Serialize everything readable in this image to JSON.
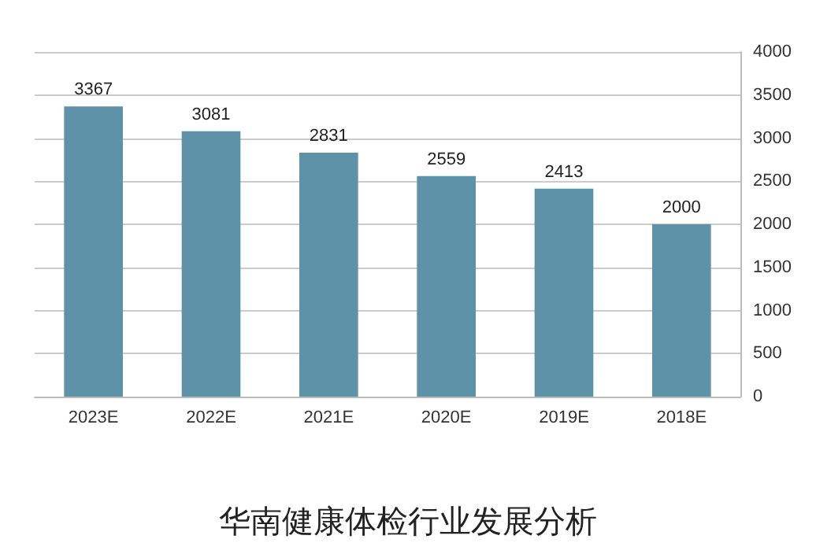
{
  "chart_data": {
    "type": "bar",
    "title": "华南健康体检行业发展分析",
    "categories": [
      "2023E",
      "2022E",
      "2021E",
      "2020E",
      "2019E",
      "2018E"
    ],
    "values": [
      3367,
      3081,
      2831,
      2559,
      2413,
      2000
    ],
    "color": "#5e92a8",
    "ylim": [
      0,
      4000
    ],
    "yticks": [
      0,
      500,
      1000,
      1500,
      2000,
      2500,
      3000,
      3500,
      4000
    ],
    "grid": "y",
    "data_labels": true
  }
}
